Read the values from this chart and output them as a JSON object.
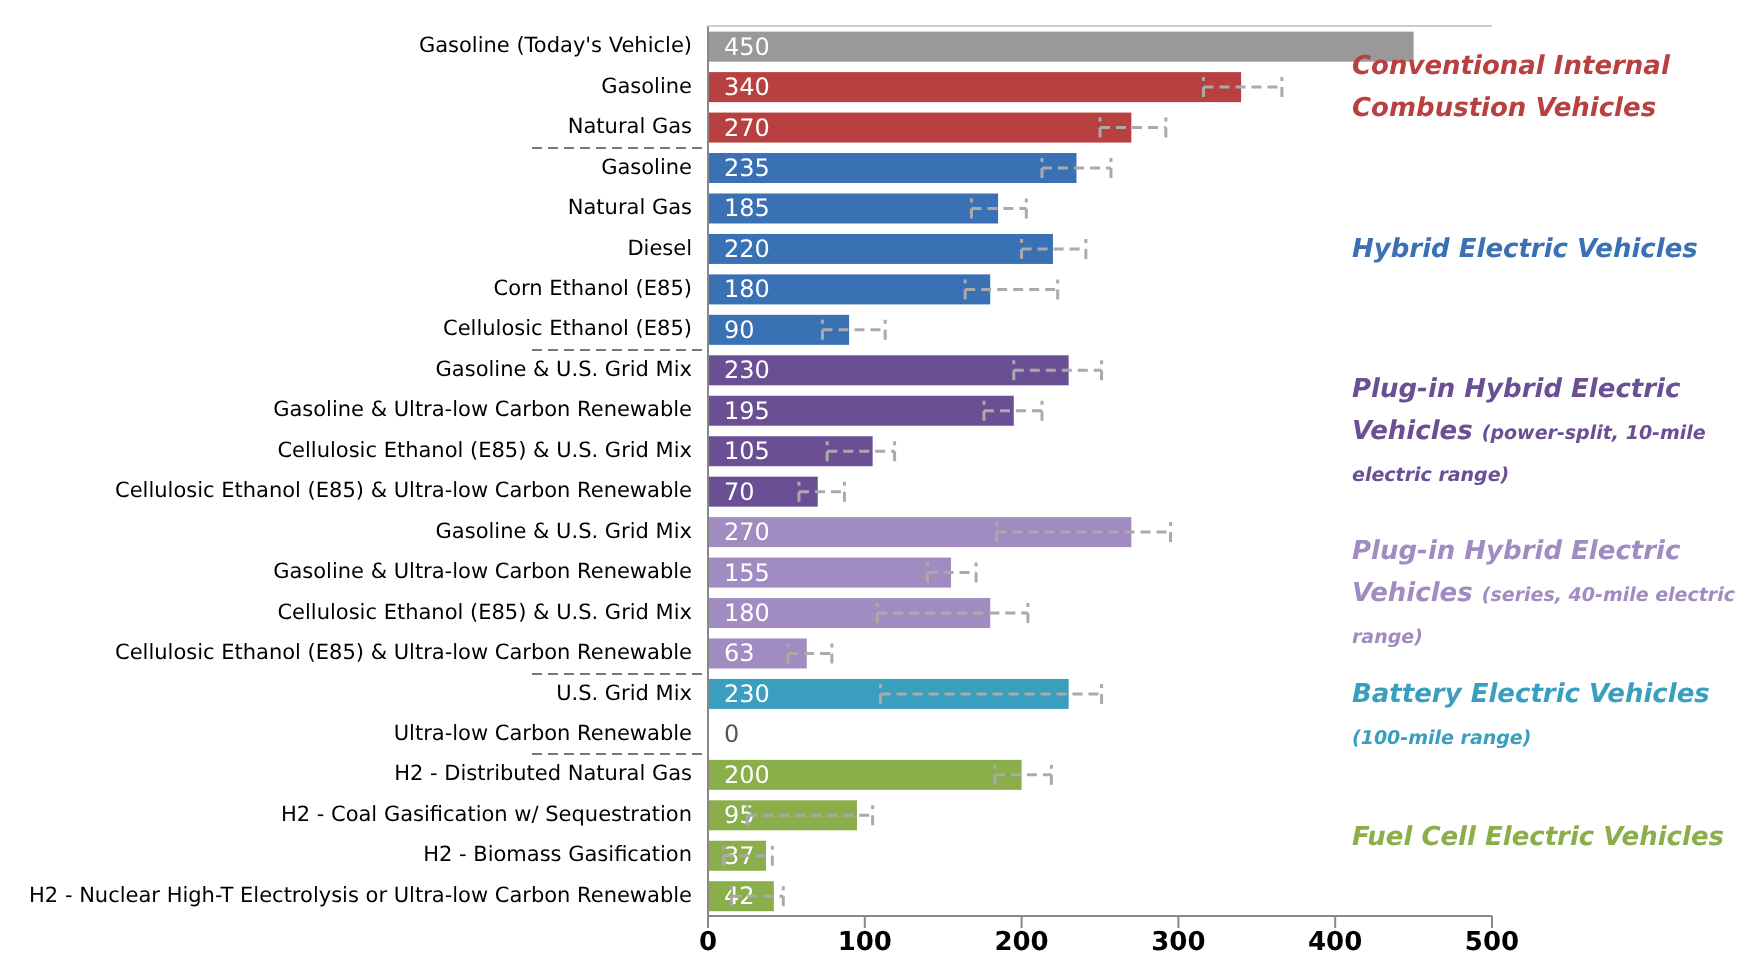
{
  "chart_data": {
    "type": "bar",
    "orientation": "horizontal",
    "data_labels": true,
    "categories": [
      "Gasoline (Today's Vehicle)",
      "Gasoline",
      "Natural Gas",
      "Gasoline",
      "Natural Gas",
      "Diesel",
      "Corn Ethanol (E85)",
      "Cellulosic Ethanol (E85)",
      "Gasoline & U.S. Grid Mix",
      "Gasoline & Ultra-low Carbon Renewable",
      "Cellulosic Ethanol (E85) & U.S. Grid Mix",
      "Cellulosic Ethanol (E85) & Ultra-low Carbon Renewable",
      "Gasoline & U.S. Grid Mix",
      "Gasoline & Ultra-low Carbon Renewable",
      "Cellulosic Ethanol (E85) & U.S. Grid Mix",
      "Cellulosic Ethanol (E85) & Ultra-low Carbon Renewable",
      "U.S. Grid Mix",
      "Ultra-low Carbon Renewable",
      "H2 - Distributed Natural Gas",
      "H2 - Coal Gasification w/ Sequestration",
      "H2 - Biomass Gasification",
      "H2 - Nuclear High-T Electrolysis or Ultra-low Carbon Renewable"
    ],
    "values": [
      450,
      340,
      270,
      235,
      185,
      220,
      180,
      90,
      230,
      195,
      105,
      70,
      270,
      155,
      180,
      63,
      230,
      0,
      200,
      95,
      37,
      42
    ],
    "colors": [
      "#999999",
      "#b94040",
      "#b94040",
      "#3a70b4",
      "#3a70b4",
      "#3a70b4",
      "#3a70b4",
      "#3a70b4",
      "#6b4f94",
      "#6b4f94",
      "#6b4f94",
      "#6b4f94",
      "#a08cc0",
      "#a08cc0",
      "#a08cc0",
      "#a08cc0",
      "#3a9fbf",
      "#3a9fbf",
      "#8aae4a",
      "#8aae4a",
      "#8aae4a",
      "#8aae4a"
    ],
    "errors": [
      null,
      [
        316,
        366
      ],
      [
        250,
        292
      ],
      [
        213,
        257
      ],
      [
        168,
        203
      ],
      [
        200,
        241
      ],
      [
        164,
        223
      ],
      [
        73,
        113
      ],
      [
        195,
        251
      ],
      [
        176,
        213
      ],
      [
        76,
        119
      ],
      [
        58,
        87
      ],
      [
        184,
        295
      ],
      [
        140,
        171
      ],
      [
        108,
        204
      ],
      [
        51,
        79
      ],
      [
        110,
        251
      ],
      null,
      [
        183,
        219
      ],
      [
        25,
        105
      ],
      [
        10,
        41
      ],
      [
        15,
        48
      ]
    ],
    "xlim": [
      0,
      500
    ],
    "xticks": [
      0,
      100,
      200,
      300,
      400,
      500
    ],
    "annotations": [
      "Conventional Internal Combustion Vehicles",
      "Hybrid Electric Vehicles",
      "Plug-in Hybrid Electric Vehicles (power-split, 10-mile electric range)",
      "Plug-in Hybrid Electric Vehicles (series, 40-mile electric range)",
      "Battery Electric Vehicles (100-mile range)",
      "Fuel Cell Electric Vehicles"
    ]
  }
}
